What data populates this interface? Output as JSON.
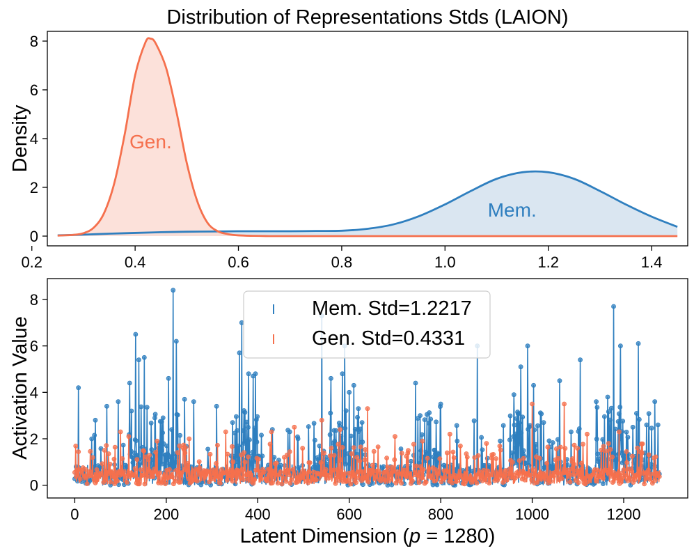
{
  "colors": {
    "mem": "#2f7fbf",
    "gen": "#f5704d",
    "mem_fill": "#d3e2ef",
    "gen_fill": "#fcdcd4"
  },
  "chart_data": [
    {
      "type": "area",
      "title": "Distribution of Representations Stds (LAION)",
      "xlabel": "",
      "ylabel": "Density",
      "xlim": [
        0.23,
        1.47
      ],
      "ylim": [
        -0.4,
        8.4
      ],
      "xticks": [
        0.2,
        0.4,
        0.6,
        0.8,
        1.0,
        1.2,
        1.4
      ],
      "xtick_labels": [
        "0.2",
        "0.4",
        "0.6",
        "0.8",
        "1.0",
        "1.2",
        "1.4"
      ],
      "yticks": [
        0,
        2,
        4,
        6,
        8
      ],
      "ytick_labels": [
        "0",
        "2",
        "4",
        "6",
        "8"
      ],
      "grid": false,
      "series": [
        {
          "name": "Gen.",
          "color_key": "gen",
          "annotation": {
            "text": "Gen.",
            "x": 0.43,
            "y": 3.6
          },
          "x": [
            0.25,
            0.28,
            0.3,
            0.32,
            0.34,
            0.36,
            0.38,
            0.4,
            0.42,
            0.43,
            0.44,
            0.46,
            0.48,
            0.5,
            0.52,
            0.54,
            0.56,
            0.58,
            0.6,
            0.63,
            0.66,
            0.7,
            0.8,
            1.0,
            1.2,
            1.45
          ],
          "values": [
            0.02,
            0.05,
            0.12,
            0.35,
            0.95,
            2.2,
            4.2,
            6.6,
            7.95,
            8.1,
            7.9,
            6.9,
            5.1,
            3.0,
            1.45,
            0.55,
            0.2,
            0.08,
            0.03,
            0.01,
            0.0,
            0.0,
            0.0,
            0.0,
            0.0,
            0.0
          ]
        },
        {
          "name": "Mem.",
          "color_key": "mem",
          "annotation": {
            "text": "Mem.",
            "x": 1.13,
            "y": 0.8
          },
          "x": [
            0.25,
            0.3,
            0.35,
            0.4,
            0.45,
            0.5,
            0.55,
            0.6,
            0.65,
            0.7,
            0.75,
            0.8,
            0.85,
            0.9,
            0.95,
            1.0,
            1.05,
            1.1,
            1.15,
            1.2,
            1.25,
            1.3,
            1.35,
            1.4,
            1.45
          ],
          "values": [
            0.03,
            0.06,
            0.1,
            0.13,
            0.16,
            0.18,
            0.19,
            0.2,
            0.2,
            0.2,
            0.21,
            0.22,
            0.3,
            0.48,
            0.82,
            1.3,
            1.85,
            2.35,
            2.62,
            2.62,
            2.35,
            1.85,
            1.3,
            0.8,
            0.38
          ]
        }
      ]
    },
    {
      "type": "scatter",
      "title": "",
      "xlabel": "Latent Dimension (",
      "xlabel_var": "p",
      "xlabel_eq": " = 1280)",
      "ylabel": "Activation Value",
      "xlim": [
        -60,
        1340
      ],
      "ylim": [
        -0.55,
        8.9
      ],
      "xticks": [
        0,
        200,
        400,
        600,
        800,
        1000,
        1200
      ],
      "xtick_labels": [
        "0",
        "200",
        "400",
        "600",
        "800",
        "1000",
        "1200"
      ],
      "yticks": [
        0,
        2,
        4,
        6,
        8
      ],
      "ytick_labels": [
        "0",
        "2",
        "4",
        "6",
        "8"
      ],
      "grid": false,
      "legend_position": "upper-center",
      "legend": [
        {
          "label": "Mem. Std=1.2217",
          "color_key": "mem"
        },
        {
          "label": "Gen. Std=0.4331",
          "color_key": "gen"
        }
      ],
      "n_points": 1280,
      "series": [
        {
          "name": "Mem. Std=1.2217",
          "color_key": "mem",
          "spikes": [
            [
              8,
              4.2
            ],
            [
              45,
              2.8
            ],
            [
              70,
              3.4
            ],
            [
              95,
              3.6
            ],
            [
              120,
              4.4
            ],
            [
              133,
              6.5
            ],
            [
              140,
              5.4
            ],
            [
              152,
              5.5
            ],
            [
              175,
              2.9
            ],
            [
              205,
              4.6
            ],
            [
              215,
              8.4
            ],
            [
              222,
              6.2
            ],
            [
              240,
              3.7
            ],
            [
              260,
              3.6
            ],
            [
              310,
              3.4
            ],
            [
              345,
              2.7
            ],
            [
              360,
              5.7
            ],
            [
              365,
              7.0
            ],
            [
              380,
              4.8
            ],
            [
              390,
              4.7
            ],
            [
              395,
              4.8
            ],
            [
              470,
              2.3
            ],
            [
              540,
              7.3
            ],
            [
              560,
              4.6
            ],
            [
              585,
              4.8
            ],
            [
              590,
              6.0
            ],
            [
              600,
              4.0
            ],
            [
              610,
              4.3
            ],
            [
              620,
              3.3
            ],
            [
              745,
              4.4
            ],
            [
              800,
              3.5
            ],
            [
              880,
              6.0
            ],
            [
              960,
              3.9
            ],
            [
              975,
              5.1
            ],
            [
              990,
              6.0
            ],
            [
              1003,
              4.3
            ],
            [
              1025,
              2.7
            ],
            [
              1060,
              4.5
            ],
            [
              1085,
              2.3
            ],
            [
              1105,
              5.4
            ],
            [
              1140,
              3.6
            ],
            [
              1165,
              3.8
            ],
            [
              1178,
              7.7
            ],
            [
              1193,
              6.0
            ],
            [
              1220,
              2.5
            ],
            [
              1232,
              6.1
            ],
            [
              1250,
              2.6
            ],
            [
              1268,
              3.6
            ],
            [
              1275,
              2.6
            ]
          ]
        },
        {
          "name": "Gen. Std=0.4331",
          "color_key": "gen",
          "spikes": [
            [
              100,
              2.3
            ],
            [
              118,
              2.1
            ],
            [
              180,
              1.9
            ],
            [
              250,
              2.0
            ],
            [
              330,
              2.3
            ],
            [
              430,
              2.3
            ],
            [
              480,
              2.5
            ],
            [
              540,
              2.8
            ],
            [
              580,
              2.4
            ],
            [
              640,
              3.3
            ],
            [
              700,
              2.1
            ],
            [
              760,
              1.9
            ],
            [
              820,
              2.2
            ],
            [
              900,
              1.8
            ],
            [
              1000,
              3.5
            ],
            [
              1070,
              3.5
            ],
            [
              1120,
              2.2
            ],
            [
              1190,
              2.3
            ],
            [
              1230,
              1.6
            ]
          ]
        }
      ]
    }
  ]
}
